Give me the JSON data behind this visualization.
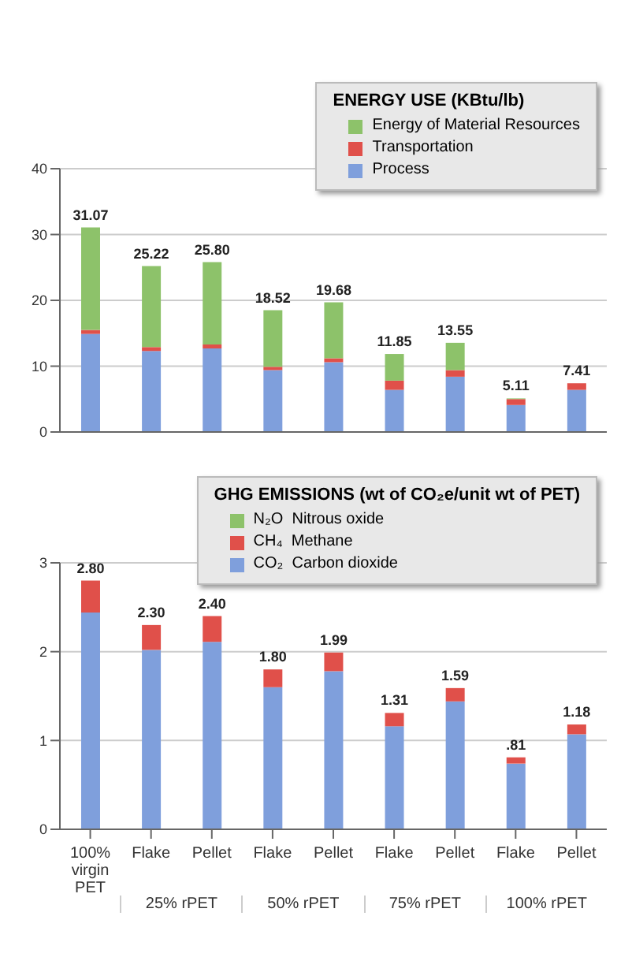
{
  "chart_data": [
    {
      "type": "bar",
      "stacked": true,
      "legend_title": "ENERGY USE (KBtu/lb)",
      "legend": "top right",
      "grid": "y",
      "tick_labels": "y",
      "categories": [
        null,
        null,
        null,
        null,
        null,
        null,
        null,
        null,
        null
      ],
      "ylim": [
        0,
        40
      ],
      "yticks": [
        0,
        10,
        20,
        30,
        40
      ],
      "series": [
        {
          "name": "Process",
          "color": "#7f9fdc",
          "values": [
            14.9,
            12.3,
            12.7,
            9.4,
            10.6,
            6.4,
            8.4,
            4.1,
            6.4
          ]
        },
        {
          "name": "Transportation",
          "color": "#e0504a",
          "values": [
            0.6,
            0.6,
            0.6,
            0.5,
            0.6,
            1.4,
            1.0,
            0.9,
            1.0
          ]
        },
        {
          "name": "Energy of Material Resources",
          "color": "#8dc26a",
          "values": [
            15.57,
            12.3,
            12.5,
            8.6,
            8.5,
            4.05,
            4.15,
            0.1,
            0
          ]
        }
      ],
      "totals": [
        "31.07",
        "25.22",
        "25.80",
        "18.52",
        "19.68",
        "11.85",
        "13.55",
        "5.11",
        "7.41"
      ]
    },
    {
      "type": "bar",
      "stacked": true,
      "legend_title": "GHG EMISSIONS (wt of CO₂e/unit wt of PET)",
      "legend": "top right",
      "grid": "y",
      "categories": [
        "100% virgin PET",
        "Flake",
        "Pellet",
        "Flake",
        "Pellet",
        "Flake",
        "Pellet",
        "Flake",
        "Pellet"
      ],
      "ylim": [
        0,
        3
      ],
      "yticks": [
        0,
        1,
        2,
        3
      ],
      "series": [
        {
          "name": "CO₂  Carbon dioxide",
          "color": "#7f9fdc",
          "values": [
            2.44,
            2.02,
            2.11,
            1.6,
            1.78,
            1.16,
            1.44,
            0.74,
            1.07
          ]
        },
        {
          "name": "CH₄  Methane",
          "color": "#e0504a",
          "values": [
            0.36,
            0.28,
            0.29,
            0.2,
            0.21,
            0.15,
            0.15,
            0.07,
            0.11
          ]
        },
        {
          "name": "N₂O  Nitrous oxide",
          "color": "#8dc26a",
          "values": [
            0,
            0,
            0,
            0,
            0,
            0,
            0,
            0,
            0
          ]
        }
      ],
      "totals": [
        "2.80",
        "2.30",
        "2.40",
        "1.80",
        "1.99",
        "1.31",
        "1.59",
        ".81",
        "1.18"
      ],
      "annotations": [
        "25% rPET",
        "50% rPET",
        "75% rPET",
        "100% rPET"
      ]
    }
  ]
}
